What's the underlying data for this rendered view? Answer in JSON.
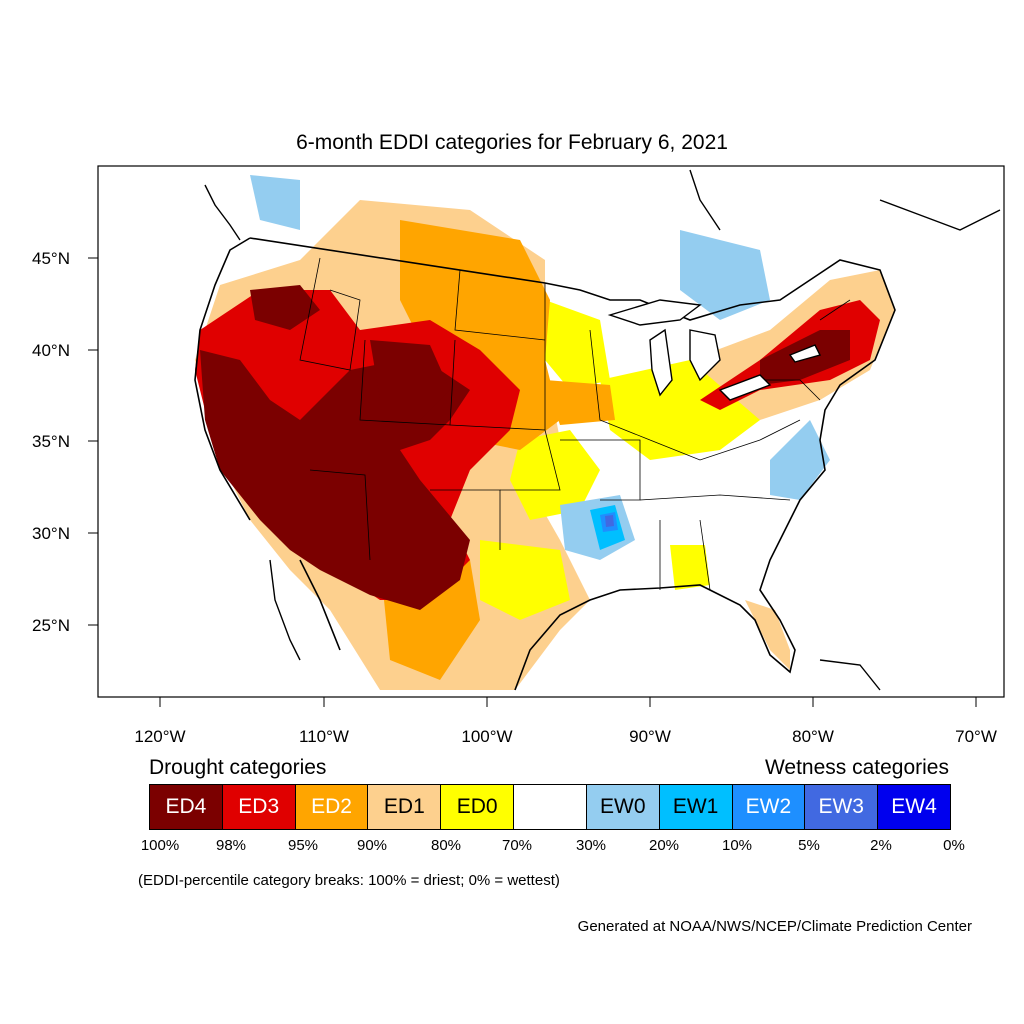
{
  "title": "6-month EDDI categories for February 6, 2021",
  "lat_labels": [
    "45°N",
    "40°N",
    "35°N",
    "30°N",
    "25°N"
  ],
  "lon_labels": [
    "120°W",
    "110°W",
    "100°W",
    "90°W",
    "80°W",
    "70°W"
  ],
  "legend": {
    "drought_heading": "Drought categories",
    "wetness_heading": "Wetness categories",
    "categories": [
      {
        "label": "ED4",
        "color": "#7b0000",
        "text_color": "#ffffff"
      },
      {
        "label": "ED3",
        "color": "#e00000",
        "text_color": "#ffffff"
      },
      {
        "label": "ED2",
        "color": "#ffa500",
        "text_color": "#ffffff"
      },
      {
        "label": "ED1",
        "color": "#fdd08e",
        "text_color": "#000000"
      },
      {
        "label": "ED0",
        "color": "#ffff00",
        "text_color": "#000000"
      },
      {
        "label": "",
        "color": "#ffffff",
        "text_color": "#000000"
      },
      {
        "label": "EW0",
        "color": "#94cdf0",
        "text_color": "#000000"
      },
      {
        "label": "EW1",
        "color": "#00bfff",
        "text_color": "#000000"
      },
      {
        "label": "EW2",
        "color": "#1e8fff",
        "text_color": "#ffffff"
      },
      {
        "label": "EW3",
        "color": "#4169e1",
        "text_color": "#ffffff"
      },
      {
        "label": "EW4",
        "color": "#0000ee",
        "text_color": "#ffffff"
      }
    ],
    "percentiles": [
      "100%",
      "98%",
      "95%",
      "90%",
      "80%",
      "70%",
      "30%",
      "20%",
      "10%",
      "5%",
      "2%",
      "0%"
    ]
  },
  "note": "(EDDI-percentile category breaks: 100% = driest; 0% = wettest)",
  "credit": "Generated at NOAA/NWS/NCEP/Climate Prediction Center"
}
